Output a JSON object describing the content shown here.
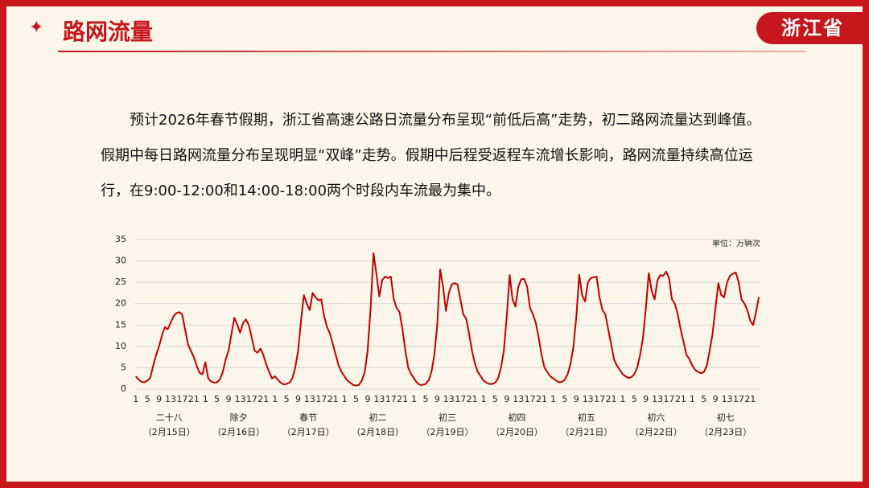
{
  "header": {
    "title": "路网流量",
    "region": "浙江省"
  },
  "paragraph": "预计2026年春节假期，浙江省高速公路日流量分布呈现“前低后高”走势，初二路网流量达到峰值。假期中每日路网流量分布呈现明显“双峰”走势。假期中后程受返程车流增长影响，路网流量持续高位运行，在9:00-12:00和14:00-18:00两个时段内车流最为集中。",
  "chart_data": {
    "type": "line",
    "unit_note": "单位：万辆次",
    "color": "#c00000",
    "grid": true,
    "ylim": [
      0,
      35
    ],
    "yticks": [
      0,
      5,
      10,
      15,
      20,
      25,
      30,
      35
    ],
    "categories": [
      "1",
      null,
      null,
      null,
      "5",
      null,
      null,
      null,
      "9",
      null,
      null,
      null,
      "13",
      null,
      null,
      null,
      "17",
      null,
      null,
      null,
      "21",
      null,
      null,
      null,
      "1",
      null,
      null,
      null,
      "5",
      null,
      null,
      null,
      "9",
      null,
      null,
      null,
      "13",
      null,
      null,
      null,
      "17",
      null,
      null,
      null,
      "21",
      null,
      null,
      null,
      "1",
      null,
      null,
      null,
      "5",
      null,
      null,
      null,
      "9",
      null,
      null,
      null,
      "13",
      null,
      null,
      null,
      "17",
      null,
      null,
      null,
      "21",
      null,
      null,
      null,
      "1",
      null,
      null,
      null,
      "5",
      null,
      null,
      null,
      "9",
      null,
      null,
      null,
      "13",
      null,
      null,
      null,
      "17",
      null,
      null,
      null,
      "21",
      null,
      null,
      null,
      "1",
      null,
      null,
      null,
      "5",
      null,
      null,
      null,
      "9",
      null,
      null,
      null,
      "13",
      null,
      null,
      null,
      "17",
      null,
      null,
      null,
      "21",
      null,
      null,
      null,
      "1",
      null,
      null,
      null,
      "5",
      null,
      null,
      null,
      "9",
      null,
      null,
      null,
      "13",
      null,
      null,
      null,
      "17",
      null,
      null,
      null,
      "21",
      null,
      null,
      null,
      "1",
      null,
      null,
      null,
      "5",
      null,
      null,
      null,
      "9",
      null,
      null,
      null,
      "13",
      null,
      null,
      null,
      "17",
      null,
      null,
      null,
      "21",
      null,
      null,
      null,
      "1",
      null,
      null,
      null,
      "5",
      null,
      null,
      null,
      "9",
      null,
      null,
      null,
      "13",
      null,
      null,
      null,
      "17",
      null,
      null,
      null,
      "21",
      null,
      null,
      null,
      "1",
      null,
      null,
      null,
      "5",
      null,
      null,
      null,
      "9",
      null,
      null,
      null,
      "13",
      null,
      null,
      null,
      "17",
      null,
      null,
      null,
      "21",
      null,
      null,
      null
    ],
    "values": [
      3,
      2.2,
      1.7,
      1.6,
      2,
      2.7,
      5.5,
      8,
      10,
      12.5,
      14.5,
      14,
      15.5,
      17,
      17.8,
      18,
      17.5,
      14,
      10.5,
      9,
      7.5,
      5.5,
      3.8,
      3.5,
      6.3,
      2.5,
      1.8,
      1.5,
      1.6,
      2.3,
      4,
      7,
      9,
      13,
      16.7,
      15,
      13.2,
      15.5,
      16.3,
      15,
      12,
      9,
      8.5,
      9.5,
      8,
      5.8,
      4,
      2.5,
      3,
      2.2,
      1.5,
      1.1,
      1.2,
      1.5,
      2.5,
      5,
      9,
      16,
      22,
      20,
      18.5,
      22.5,
      21.5,
      20.8,
      21,
      17,
      14.5,
      13,
      10.5,
      8,
      5.5,
      4,
      3,
      2,
      1.5,
      1,
      0.8,
      1,
      2,
      4,
      9,
      19,
      31.8,
      27,
      21.7,
      25.5,
      26.3,
      26,
      26.3,
      21,
      19,
      18,
      14,
      9,
      5,
      3.5,
      2.5,
      1.5,
      1,
      1,
      1.2,
      2,
      4,
      8,
      15,
      28,
      24,
      18.3,
      22.5,
      24.5,
      24.8,
      24.5,
      21,
      17.5,
      16.5,
      13,
      9,
      6,
      4,
      3,
      2,
      1.5,
      1.2,
      1.2,
      1.5,
      2.5,
      5,
      9,
      17,
      26.7,
      21,
      19.3,
      24,
      25.7,
      25.8,
      24,
      19,
      17.5,
      15.5,
      12,
      8,
      5,
      4,
      3,
      2.5,
      2,
      1.6,
      1.7,
      2.2,
      3.5,
      6,
      10,
      17,
      26.8,
      22,
      20.5,
      25,
      26,
      26.2,
      26.3,
      21.5,
      18.5,
      17.5,
      14,
      10.5,
      7,
      5.5,
      4.5,
      3.5,
      3,
      2.6,
      2.8,
      3.5,
      5,
      8,
      12,
      19,
      27.2,
      23,
      21,
      25.5,
      26.7,
      26.5,
      27.5,
      26,
      21,
      20,
      17.5,
      14,
      11,
      8,
      7,
      5.5,
      4.5,
      4,
      3.7,
      4,
      5.5,
      9,
      13,
      19,
      24.8,
      22,
      21.5,
      25,
      26.5,
      27,
      27.3,
      25,
      21,
      20,
      18.5,
      16,
      15,
      18,
      21.5
    ],
    "groups": [
      {
        "label": "二十八",
        "date": "（2月15日）"
      },
      {
        "label": "除夕",
        "date": "（2月16日）"
      },
      {
        "label": "春节",
        "date": "（2月17日）"
      },
      {
        "label": "初二",
        "date": "（2月18日）"
      },
      {
        "label": "初三",
        "date": "（2月19日）"
      },
      {
        "label": "初四",
        "date": "（2月20日）"
      },
      {
        "label": "初五",
        "date": "（2月21日）"
      },
      {
        "label": "初六",
        "date": "（2月22日）"
      },
      {
        "label": "初七",
        "date": "（2月23日）"
      }
    ]
  }
}
